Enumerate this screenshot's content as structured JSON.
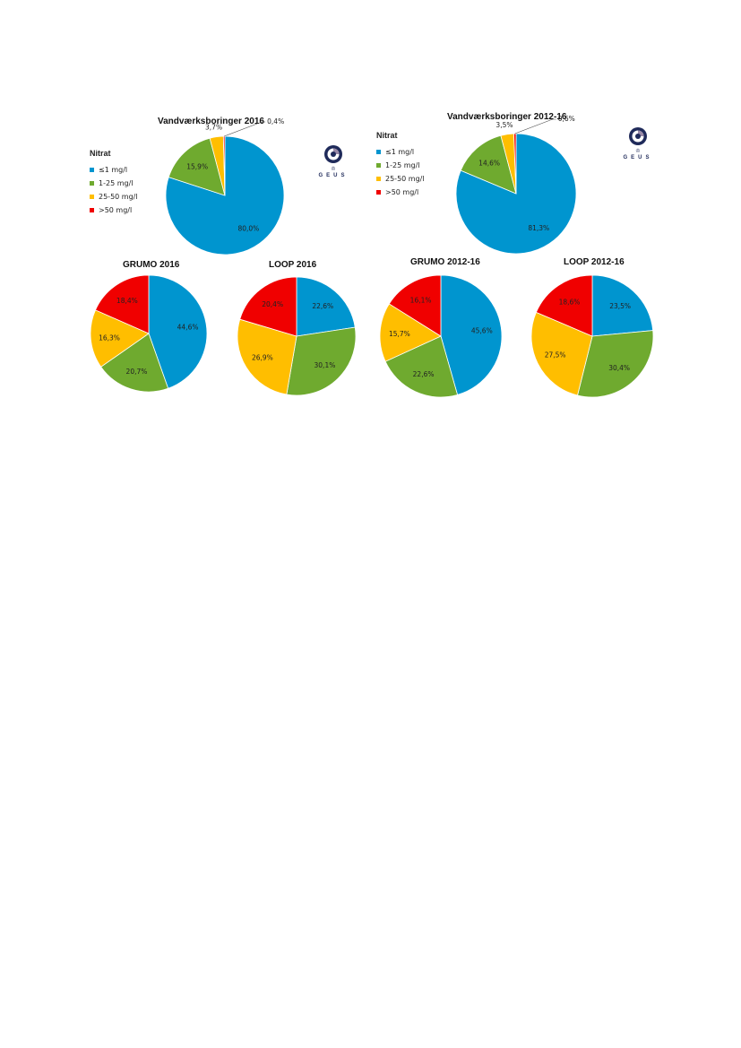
{
  "legend": {
    "title": "Nitrat",
    "items": [
      {
        "label": "≤1 mg/l",
        "color": "#0095CF"
      },
      {
        "label": "1-25 mg/l",
        "color": "#6FAA2F"
      },
      {
        "label": "25-50 mg/l",
        "color": "#FFBE00"
      },
      {
        "label": ">50 mg/l",
        "color": "#F00000"
      }
    ]
  },
  "logo": {
    "text": "GEUS"
  },
  "chart_data": [
    {
      "type": "pie",
      "title": "Vandværksboringer 2016",
      "categories": [
        "≤1 mg/l",
        "1-25 mg/l",
        "25-50 mg/l",
        ">50 mg/l"
      ],
      "values": [
        80.0,
        15.9,
        3.7,
        0.4
      ],
      "labels": [
        "80,0%",
        "15,9%",
        "3,7%",
        "0,4%"
      ]
    },
    {
      "type": "pie",
      "title": "Vandværksboringer 2012-16",
      "categories": [
        "≤1 mg/l",
        "1-25 mg/l",
        "25-50 mg/l",
        ">50 mg/l"
      ],
      "values": [
        81.3,
        14.6,
        3.5,
        0.6
      ],
      "labels": [
        "81,3%",
        "14,6%",
        "3,5%",
        "0,6%"
      ]
    },
    {
      "type": "pie",
      "title": "GRUMO 2016",
      "categories": [
        "≤1 mg/l",
        "1-25 mg/l",
        "25-50 mg/l",
        ">50 mg/l"
      ],
      "values": [
        44.6,
        20.7,
        16.3,
        18.4
      ],
      "labels": [
        "44,6%",
        "20,7%",
        "16,3%",
        "18,4%"
      ]
    },
    {
      "type": "pie",
      "title": "LOOP 2016",
      "categories": [
        "≤1 mg/l",
        "1-25 mg/l",
        "25-50 mg/l",
        ">50 mg/l"
      ],
      "values": [
        22.6,
        30.1,
        26.9,
        20.4
      ],
      "labels": [
        "22,6%",
        "30,1%",
        "26,9%",
        "20,4%"
      ]
    },
    {
      "type": "pie",
      "title": "GRUMO 2012-16",
      "categories": [
        "≤1 mg/l",
        "1-25 mg/l",
        "25-50 mg/l",
        ">50 mg/l"
      ],
      "values": [
        45.6,
        22.6,
        15.7,
        16.1
      ],
      "labels": [
        "45,6%",
        "22,6%",
        "15,7%",
        "16,1%"
      ]
    },
    {
      "type": "pie",
      "title": "LOOP 2012-16",
      "categories": [
        "≤1 mg/l",
        "1-25 mg/l",
        "25-50 mg/l",
        ">50 mg/l"
      ],
      "values": [
        23.5,
        30.4,
        27.5,
        18.6
      ],
      "labels": [
        "23,5%",
        "30,4%",
        "27,5%",
        "18,6%"
      ]
    }
  ]
}
